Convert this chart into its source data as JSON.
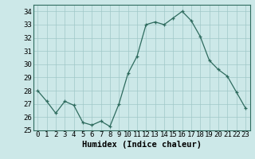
{
  "x": [
    0,
    1,
    2,
    3,
    4,
    5,
    6,
    7,
    8,
    9,
    10,
    11,
    12,
    13,
    14,
    15,
    16,
    17,
    18,
    19,
    20,
    21,
    22,
    23
  ],
  "y": [
    28,
    27.2,
    26.3,
    27.2,
    26.9,
    25.6,
    25.4,
    25.7,
    25.3,
    27.0,
    29.3,
    30.6,
    33.0,
    33.2,
    33.0,
    33.5,
    34.0,
    33.3,
    32.1,
    30.3,
    29.6,
    29.1,
    27.9,
    26.7
  ],
  "xlim": [
    -0.5,
    23.5
  ],
  "ylim": [
    25,
    34.5
  ],
  "yticks": [
    25,
    26,
    27,
    28,
    29,
    30,
    31,
    32,
    33,
    34
  ],
  "xtick_labels": [
    "0",
    "1",
    "2",
    "3",
    "4",
    "5",
    "6",
    "7",
    "8",
    "9",
    "10",
    "11",
    "12",
    "13",
    "14",
    "15",
    "16",
    "17",
    "18",
    "19",
    "20",
    "21",
    "22",
    "23"
  ],
  "xlabel": "Humidex (Indice chaleur)",
  "line_color": "#2e6b5e",
  "marker_color": "#2e6b5e",
  "bg_color": "#cce8e8",
  "grid_color": "#a0c8c8",
  "axis_label_fontsize": 7.5,
  "tick_fontsize": 6.5
}
